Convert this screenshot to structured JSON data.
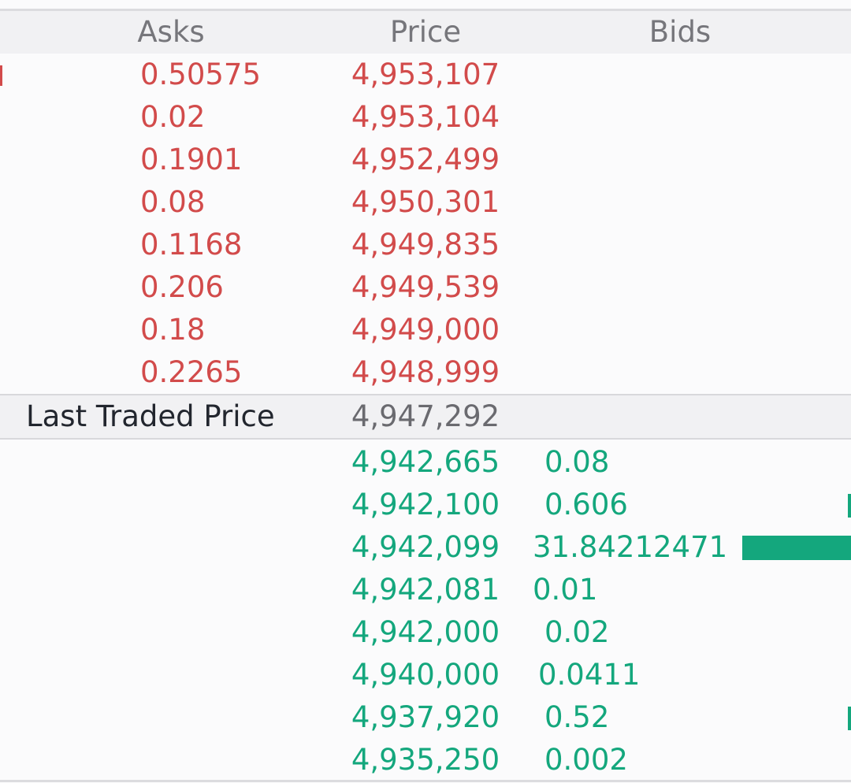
{
  "header": {
    "asks_label": "Asks",
    "price_label": "Price",
    "bids_label": "Bids"
  },
  "asks": [
    {
      "qty": "0.50575",
      "price": "4,953,107"
    },
    {
      "qty": "0.02",
      "price": "4,953,104"
    },
    {
      "qty": "0.1901",
      "price": "4,952,499"
    },
    {
      "qty": "0.08",
      "price": "4,950,301"
    },
    {
      "qty": "0.1168",
      "price": "4,949,835"
    },
    {
      "qty": "0.206",
      "price": "4,949,539"
    },
    {
      "qty": "0.18",
      "price": "4,949,000"
    },
    {
      "qty": "0.2265",
      "price": "4,948,999"
    }
  ],
  "last_traded": {
    "label": "Last Traded Price",
    "price": "4,947,292"
  },
  "bids": [
    {
      "price": "4,942,665",
      "qty": "0.08"
    },
    {
      "price": "4,942,100",
      "qty": "0.606"
    },
    {
      "price": "4,942,099",
      "qty": "31.84212471"
    },
    {
      "price": "4,942,081",
      "qty": "0.01"
    },
    {
      "price": "4,942,000",
      "qty": "0.02"
    },
    {
      "price": "4,940,000",
      "qty": "0.0411"
    },
    {
      "price": "4,937,920",
      "qty": "0.52"
    },
    {
      "price": "4,935,250",
      "qty": "0.002"
    }
  ],
  "colors": {
    "ask": "#d24b4b",
    "bid": "#14a77d",
    "header_bg": "#f1f1f3",
    "label_text": "#22262e",
    "muted_text": "#76767b"
  }
}
